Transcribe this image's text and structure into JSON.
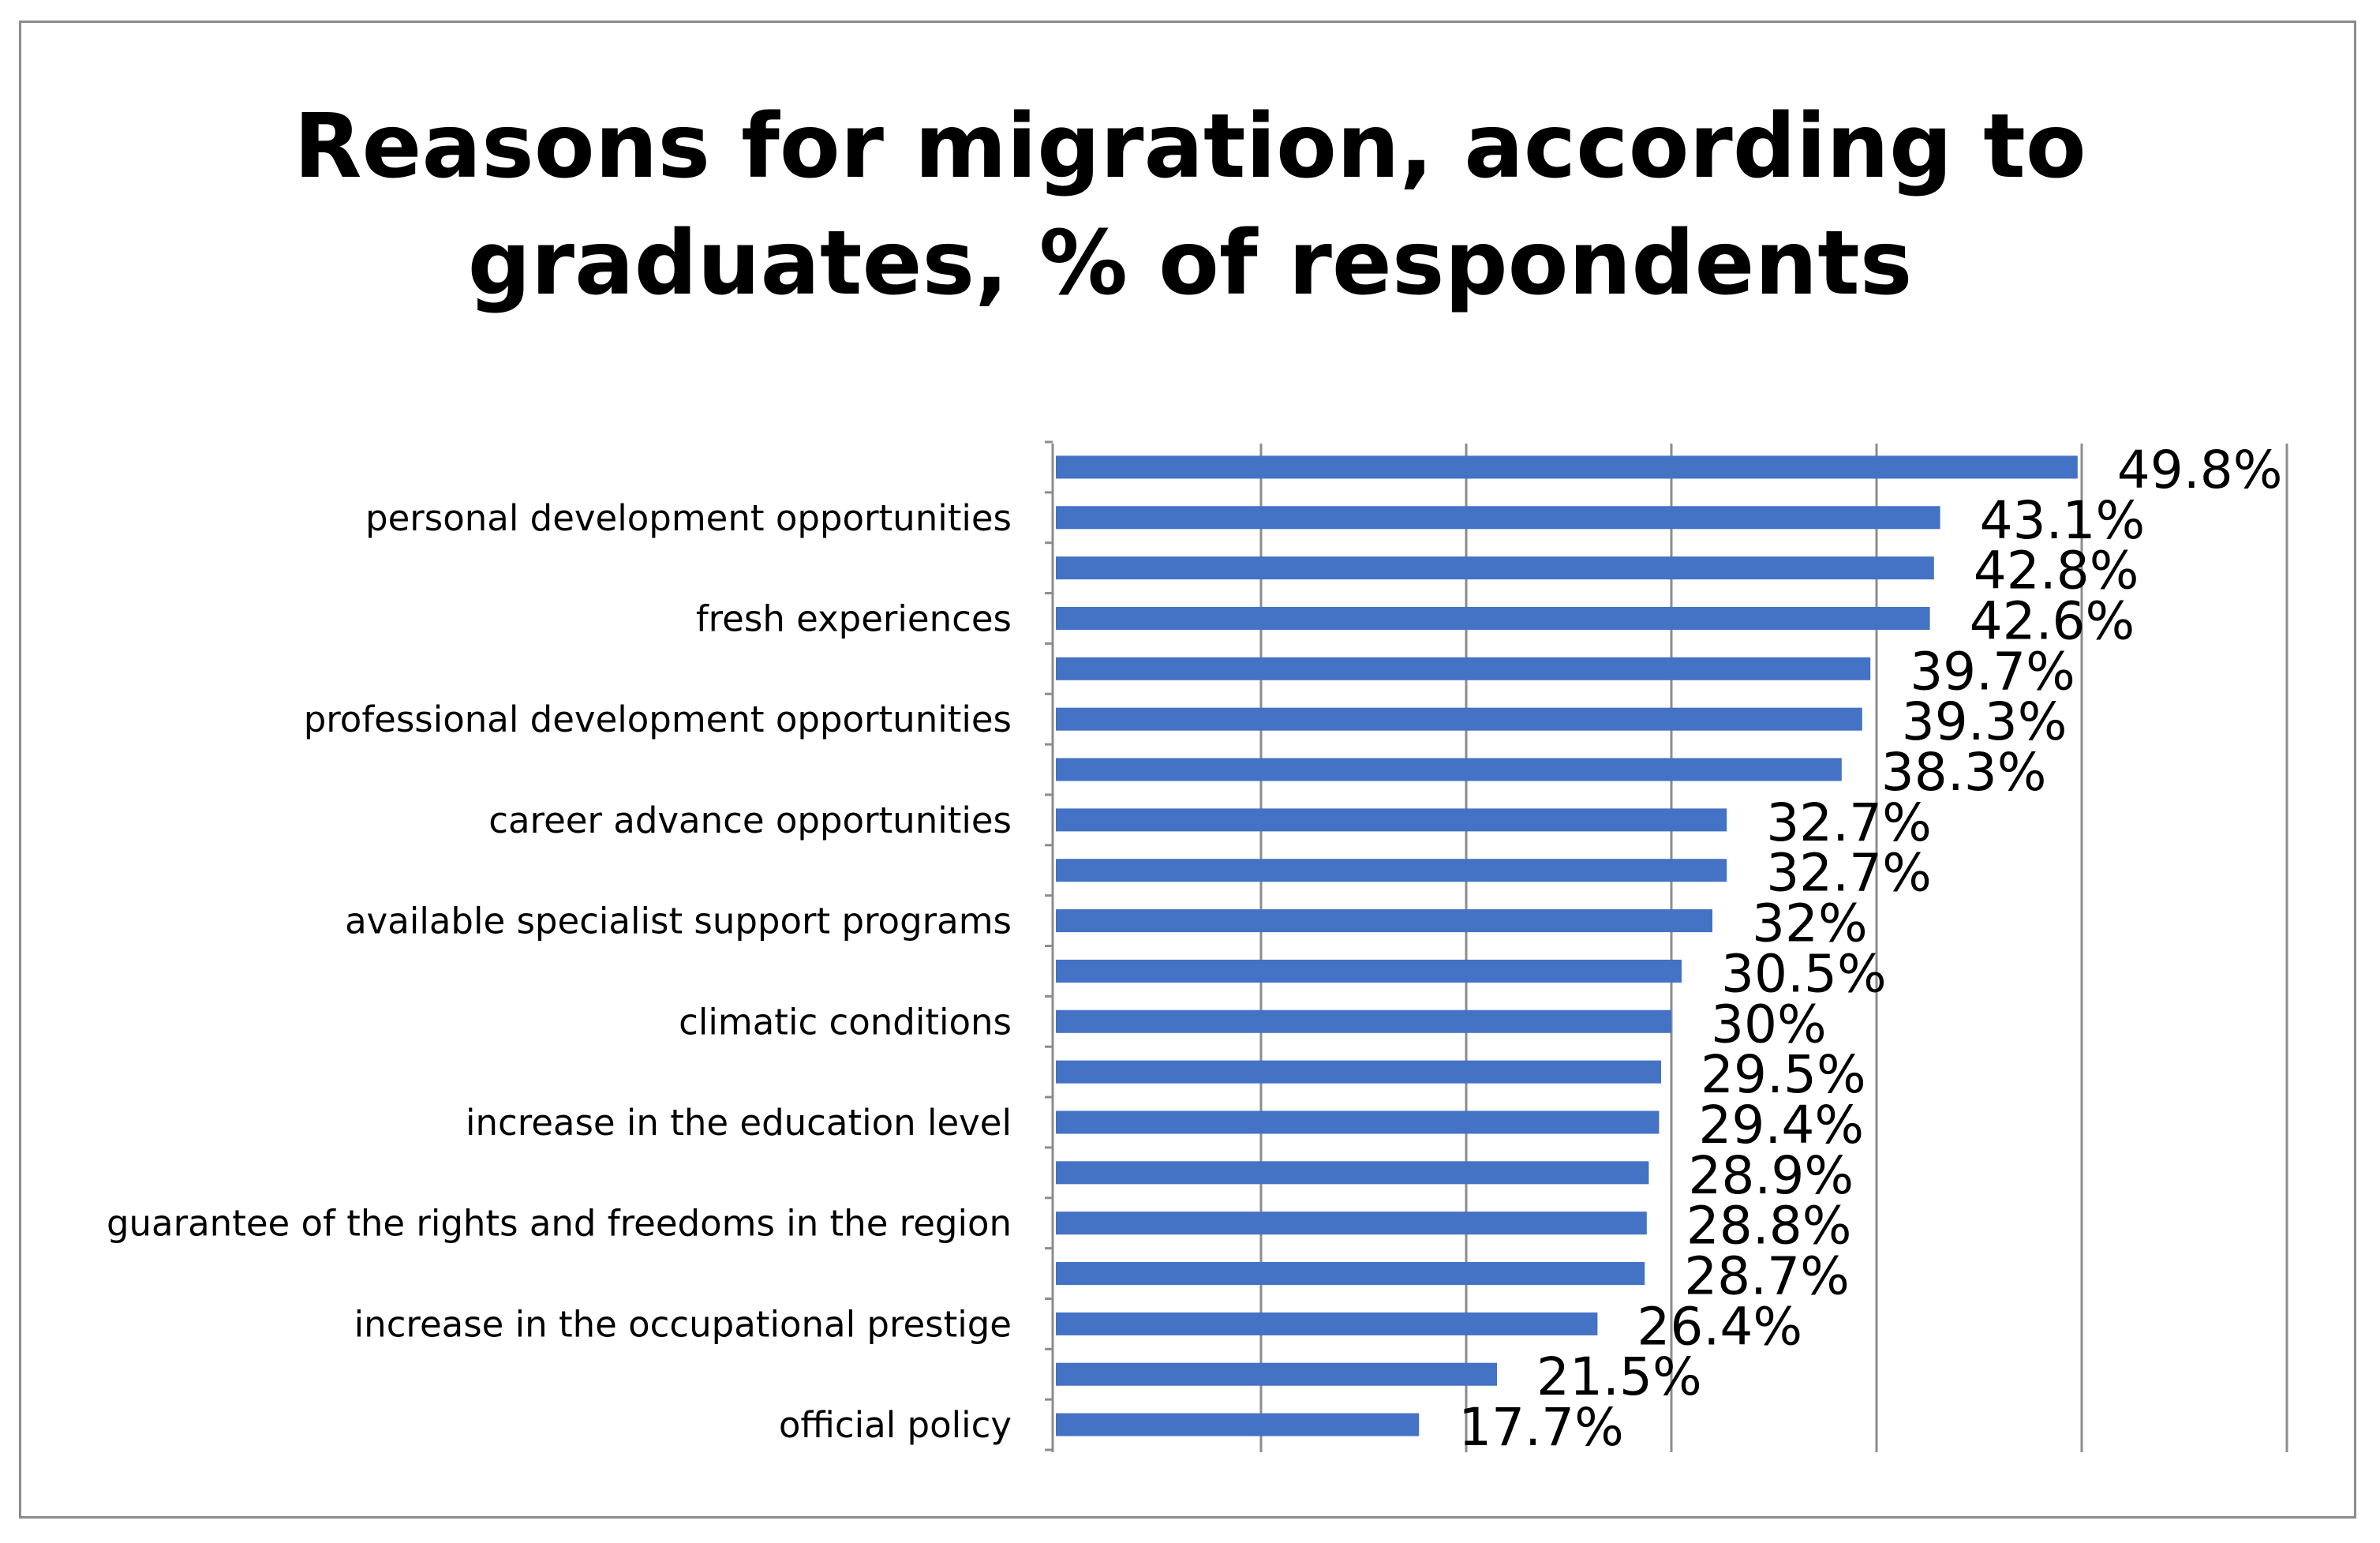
{
  "chart_data": {
    "type": "bar",
    "orientation": "horizontal",
    "title": "Reasons for migration, according to graduates, % of respondents",
    "title_lines": [
      "Reasons for migration, according to",
      "graduates, % of respondents"
    ],
    "categories": [
      "",
      "personal development opportunities",
      "",
      "fresh experiences",
      "",
      "professional development opportunities",
      "",
      "career advance opportunities",
      "",
      "available specialist support programs",
      "",
      "climatic conditions",
      "",
      "increase in the education level",
      "",
      "guarantee of the rights and freedoms in the region",
      "",
      "increase in the occupational prestige",
      "",
      "official policy"
    ],
    "values": [
      49.8,
      43.1,
      42.8,
      42.6,
      39.7,
      39.3,
      38.3,
      32.7,
      32.7,
      32,
      30.5,
      30,
      29.5,
      29.4,
      28.9,
      28.8,
      28.7,
      26.4,
      21.5,
      17.7
    ],
    "data_labels": [
      "49.8%",
      "43.1%",
      "42.8%",
      "42.6%",
      "39.7%",
      "39.3%",
      "38.3%",
      "32.7%",
      "32.7%",
      "32%",
      "30.5%",
      "30%",
      "29.5%",
      "29.4%",
      "28.9%",
      "28.8%",
      "28.7%",
      "26.4%",
      "21.5%",
      "17.7%"
    ],
    "xlim": [
      0,
      60
    ],
    "gridlines": [
      0,
      10,
      20,
      30,
      40,
      50,
      60
    ],
    "grid": true,
    "xlabel": "",
    "ylabel": "",
    "colors": {
      "bar": "#4472C4",
      "grid": "#8c8c8c",
      "frame": "#8c8c8c"
    }
  }
}
